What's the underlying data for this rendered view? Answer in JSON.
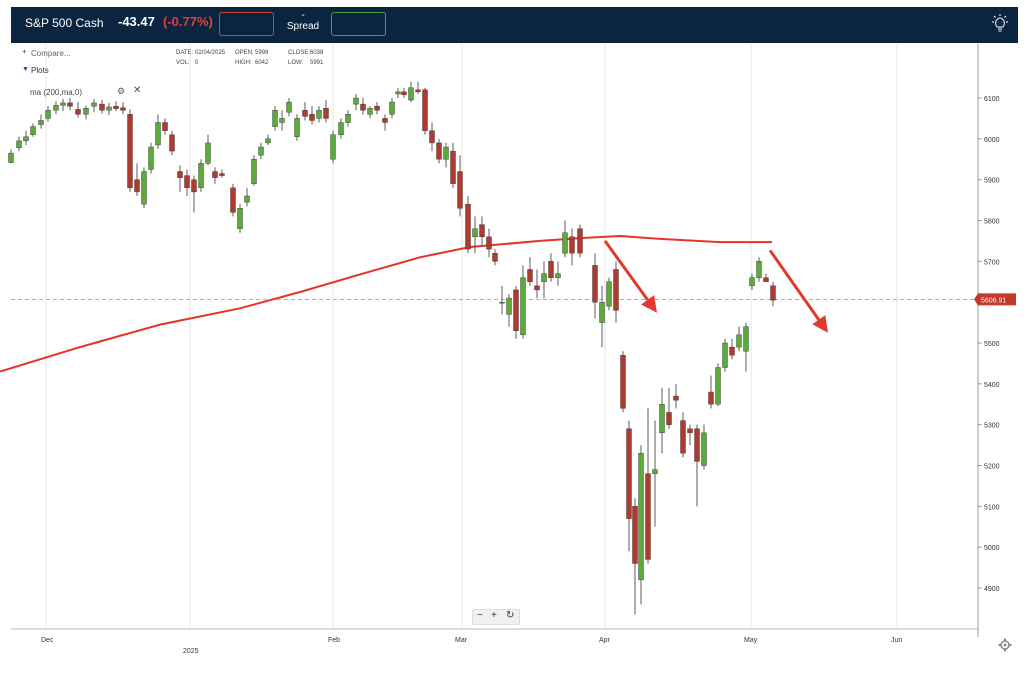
{
  "header": {
    "instrument": "S&P 500 Cash",
    "change": "-43.47",
    "change_pct": "(-0.77%)",
    "spread_value": "-",
    "spread_label": "Spread"
  },
  "toolbar": {
    "compare_label": "Compare...",
    "plots_label": "Plots",
    "indicator_label": "ma (200,ma,0)",
    "ohlc": {
      "date_label": "DATE:",
      "date_value": "02/04/2025",
      "open_label": "OPEN:",
      "open_value": "5998",
      "close_label": "CLOSE:",
      "close_value": "6038",
      "vol_label": "VOL:",
      "vol_value": "0",
      "high_label": "HIGH:",
      "high_value": "6042",
      "low_label": "LOW:",
      "low_value": "5991"
    }
  },
  "zoom": {
    "minus": "−",
    "plus": "+",
    "reset": "↻"
  },
  "colors": {
    "up": "#5aaa3c",
    "down": "#b03a2e",
    "ma": "#e63228",
    "arrow": "#e03a2e",
    "price_line": "#e07a70"
  },
  "chart_data": {
    "type": "candlestick",
    "x_axis_labels": [
      "Dec",
      "2025",
      "Feb",
      "Mar",
      "Apr",
      "May",
      "Jun"
    ],
    "y_ticks": [
      4900,
      5000,
      5100,
      5200,
      5300,
      5400,
      5500,
      5600,
      5700,
      5800,
      5900,
      6000,
      6100
    ],
    "ylim": [
      4820,
      6170
    ],
    "current_price": 5606.91,
    "current_price_label": "5606.91",
    "ma_series": {
      "name": "ma (200,ma,0)",
      "values": [
        [
          0,
          5430
        ],
        [
          80,
          5490
        ],
        [
          160,
          5545
        ],
        [
          240,
          5585
        ],
        [
          300,
          5625
        ],
        [
          360,
          5668
        ],
        [
          420,
          5710
        ],
        [
          470,
          5735
        ],
        [
          540,
          5750
        ],
        [
          580,
          5757
        ],
        [
          620,
          5762
        ],
        [
          660,
          5755
        ],
        [
          720,
          5747
        ],
        [
          772,
          5747
        ]
      ]
    },
    "candles": [
      [
        11,
        5942,
        5974,
        5940,
        5965
      ],
      [
        19,
        5978,
        6005,
        5970,
        5995
      ],
      [
        26,
        5995,
        6020,
        5985,
        6005
      ],
      [
        33,
        6010,
        6038,
        6005,
        6030
      ],
      [
        41,
        6035,
        6060,
        6025,
        6045
      ],
      [
        48,
        6050,
        6080,
        6042,
        6070
      ],
      [
        56,
        6070,
        6092,
        6060,
        6082
      ],
      [
        63,
        6082,
        6098,
        6068,
        6088
      ],
      [
        70,
        6088,
        6100,
        6070,
        6080
      ],
      [
        78,
        6072,
        6090,
        6052,
        6060
      ],
      [
        86,
        6060,
        6082,
        6048,
        6075
      ],
      [
        94,
        6080,
        6098,
        6065,
        6088
      ],
      [
        102,
        6085,
        6095,
        6062,
        6070
      ],
      [
        109,
        6070,
        6088,
        6058,
        6078
      ],
      [
        116,
        6080,
        6092,
        6068,
        6074
      ],
      [
        123,
        6076,
        6090,
        6060,
        6070
      ],
      [
        130,
        6060,
        6072,
        5870,
        5880
      ],
      [
        137,
        5900,
        5940,
        5860,
        5870
      ],
      [
        144,
        5840,
        5930,
        5830,
        5920
      ],
      [
        151,
        5925,
        5990,
        5915,
        5980
      ],
      [
        158,
        5985,
        6060,
        5975,
        6040
      ],
      [
        165,
        6040,
        6050,
        6010,
        6020
      ],
      [
        172,
        6010,
        6020,
        5960,
        5970
      ],
      [
        180,
        5920,
        5935,
        5870,
        5905
      ],
      [
        187,
        5910,
        5925,
        5860,
        5880
      ],
      [
        194,
        5900,
        5910,
        5820,
        5870
      ],
      [
        201,
        5880,
        5950,
        5870,
        5940
      ],
      [
        208,
        5940,
        6010,
        5935,
        5990
      ],
      [
        215,
        5920,
        5930,
        5890,
        5905
      ],
      [
        222,
        5915,
        5925,
        5905,
        5910
      ],
      [
        233,
        5880,
        5890,
        5810,
        5820
      ],
      [
        240,
        5780,
        5840,
        5770,
        5830
      ],
      [
        247,
        5845,
        5880,
        5835,
        5860
      ],
      [
        254,
        5890,
        5960,
        5885,
        5950
      ],
      [
        261,
        5960,
        5990,
        5950,
        5980
      ],
      [
        268,
        5990,
        6010,
        5985,
        6000
      ],
      [
        275,
        6030,
        6080,
        6020,
        6070
      ],
      [
        282,
        6040,
        6070,
        6020,
        6050
      ],
      [
        289,
        6065,
        6100,
        6055,
        6090
      ],
      [
        297,
        6005,
        6060,
        5995,
        6050
      ],
      [
        305,
        6070,
        6090,
        6045,
        6055
      ],
      [
        312,
        6060,
        6080,
        6035,
        6045
      ],
      [
        319,
        6050,
        6080,
        6040,
        6070
      ],
      [
        326,
        6075,
        6095,
        6040,
        6050
      ],
      [
        333,
        5950,
        6020,
        5940,
        6010
      ],
      [
        341,
        6010,
        6050,
        6000,
        6040
      ],
      [
        348,
        6040,
        6070,
        6030,
        6060
      ],
      [
        356,
        6085,
        6110,
        6070,
        6100
      ],
      [
        363,
        6085,
        6100,
        6060,
        6070
      ],
      [
        370,
        6060,
        6080,
        6050,
        6075
      ],
      [
        377,
        6080,
        6090,
        6060,
        6070
      ],
      [
        385,
        6050,
        6060,
        6020,
        6040
      ],
      [
        392,
        6060,
        6100,
        6050,
        6090
      ],
      [
        398,
        6110,
        6125,
        6100,
        6115
      ],
      [
        404,
        6115,
        6125,
        6100,
        6108
      ],
      [
        411,
        6095,
        6140,
        6090,
        6125
      ],
      [
        418,
        6120,
        6140,
        6110,
        6115
      ],
      [
        425,
        6120,
        6125,
        6010,
        6020
      ],
      [
        432,
        6020,
        6040,
        5970,
        5990
      ],
      [
        439,
        5990,
        6000,
        5940,
        5950
      ],
      [
        446,
        5950,
        5990,
        5930,
        5980
      ],
      [
        453,
        5970,
        5990,
        5880,
        5890
      ],
      [
        460,
        5920,
        5960,
        5810,
        5830
      ],
      [
        468,
        5840,
        5860,
        5720,
        5730
      ],
      [
        475,
        5760,
        5810,
        5720,
        5780
      ],
      [
        482,
        5790,
        5810,
        5740,
        5760
      ],
      [
        489,
        5760,
        5780,
        5710,
        5730
      ],
      [
        495,
        5720,
        5730,
        5690,
        5700
      ],
      [
        502,
        5600,
        5640,
        5570,
        5600
      ],
      [
        509,
        5570,
        5620,
        5540,
        5610
      ],
      [
        516,
        5630,
        5640,
        5510,
        5530
      ],
      [
        523,
        5520,
        5690,
        5510,
        5660
      ],
      [
        530,
        5680,
        5710,
        5640,
        5650
      ],
      [
        537,
        5640,
        5680,
        5610,
        5630
      ],
      [
        544,
        5650,
        5700,
        5610,
        5670
      ],
      [
        551,
        5700,
        5720,
        5650,
        5660
      ],
      [
        558,
        5660,
        5700,
        5640,
        5670
      ],
      [
        565,
        5720,
        5800,
        5710,
        5770
      ],
      [
        572,
        5760,
        5780,
        5690,
        5720
      ],
      [
        580,
        5780,
        5790,
        5710,
        5720
      ],
      [
        595,
        5690,
        5720,
        5560,
        5600
      ],
      [
        602,
        5550,
        5640,
        5490,
        5600
      ],
      [
        609,
        5590,
        5660,
        5580,
        5650
      ],
      [
        616,
        5680,
        5700,
        5550,
        5580
      ],
      [
        623,
        5470,
        5480,
        5330,
        5340
      ],
      [
        629,
        5290,
        5310,
        4990,
        5070
      ],
      [
        635,
        5100,
        5120,
        4835,
        4960
      ],
      [
        641,
        4920,
        5250,
        4860,
        5230
      ],
      [
        648,
        5180,
        5340,
        4960,
        4970
      ],
      [
        655,
        5180,
        5310,
        5050,
        5190
      ],
      [
        662,
        5280,
        5390,
        5230,
        5350
      ],
      [
        669,
        5330,
        5390,
        5290,
        5300
      ],
      [
        676,
        5370,
        5400,
        5340,
        5360
      ],
      [
        683,
        5310,
        5330,
        5220,
        5230
      ],
      [
        690,
        5290,
        5300,
        5250,
        5280
      ],
      [
        697,
        5290,
        5300,
        5100,
        5210
      ],
      [
        704,
        5200,
        5300,
        5190,
        5280
      ],
      [
        711,
        5380,
        5420,
        5340,
        5350
      ],
      [
        718,
        5350,
        5450,
        5345,
        5440
      ],
      [
        725,
        5440,
        5510,
        5430,
        5500
      ],
      [
        732,
        5490,
        5510,
        5460,
        5470
      ],
      [
        739,
        5490,
        5540,
        5480,
        5520
      ],
      [
        746,
        5480,
        5550,
        5430,
        5540
      ],
      [
        752,
        5640,
        5670,
        5630,
        5660
      ],
      [
        759,
        5660,
        5710,
        5650,
        5700
      ],
      [
        766,
        5660,
        5670,
        5650,
        5650
      ],
      [
        773,
        5640,
        5650,
        5590,
        5605
      ]
    ],
    "annotations": [
      {
        "type": "arrow",
        "from": [
          605,
          5750
        ],
        "to": [
          657,
          5574
        ]
      },
      {
        "type": "arrow",
        "from": [
          770,
          5727
        ],
        "to": [
          828,
          5525
        ]
      }
    ]
  }
}
